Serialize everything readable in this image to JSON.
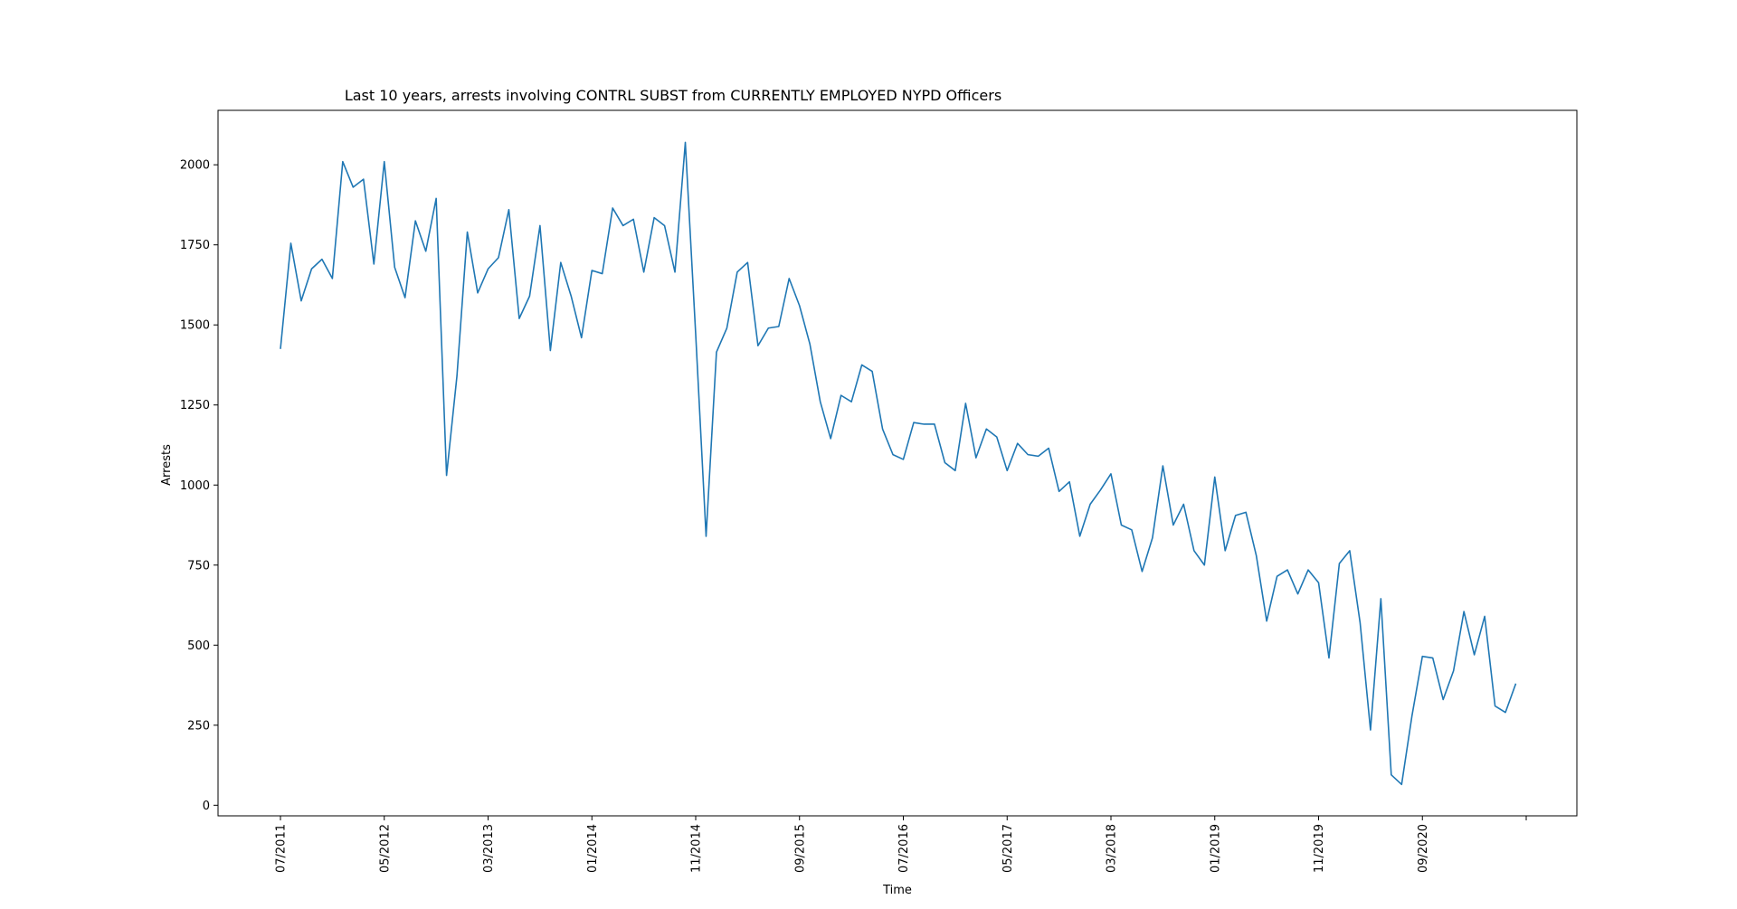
{
  "chart_data": {
    "type": "line",
    "title": "Last 10 years, arrests involving CONTRL SUBST from CURRENTLY EMPLOYED NYPD Officers",
    "xlabel": "Time",
    "ylabel": "Arrests",
    "x_ticks": [
      "07/2011",
      "05/2012",
      "03/2013",
      "01/2014",
      "11/2014",
      "09/2015",
      "07/2016",
      "05/2017",
      "03/2018",
      "01/2019",
      "11/2019",
      "09/2020"
    ],
    "y_ticks": [
      0,
      250,
      500,
      750,
      1000,
      1250,
      1500,
      1750,
      2000
    ],
    "ylim": [
      -33,
      2170
    ],
    "grid": false,
    "legend": "none",
    "line_color": "#1f77b4",
    "series": [
      {
        "x_start": "07/2011",
        "frequency": "monthly",
        "values": [
          1425,
          1755,
          1575,
          1675,
          1705,
          1645,
          2010,
          1930,
          1955,
          1690,
          2010,
          1680,
          1585,
          1825,
          1730,
          1895,
          1030,
          1340,
          1790,
          1600,
          1675,
          1710,
          1860,
          1520,
          1590,
          1810,
          1420,
          1695,
          1590,
          1460,
          1670,
          1660,
          1865,
          1810,
          1830,
          1665,
          1835,
          1810,
          1665,
          2070,
          1470,
          840,
          1415,
          1490,
          1665,
          1695,
          1435,
          1490,
          1495,
          1645,
          1560,
          1440,
          1260,
          1145,
          1280,
          1260,
          1375,
          1355,
          1175,
          1095,
          1080,
          1195,
          1190,
          1190,
          1070,
          1045,
          1255,
          1085,
          1175,
          1150,
          1045,
          1130,
          1095,
          1090,
          1115,
          980,
          1010,
          840,
          940,
          985,
          1035,
          875,
          860,
          730,
          835,
          1060,
          875,
          940,
          795,
          750,
          1025,
          795,
          905,
          915,
          780,
          575,
          715,
          735,
          660,
          735,
          695,
          460,
          755,
          795,
          570,
          235,
          645,
          95,
          65,
          280,
          465,
          460,
          330,
          420,
          605,
          470,
          590,
          310,
          290,
          380
        ]
      }
    ]
  }
}
